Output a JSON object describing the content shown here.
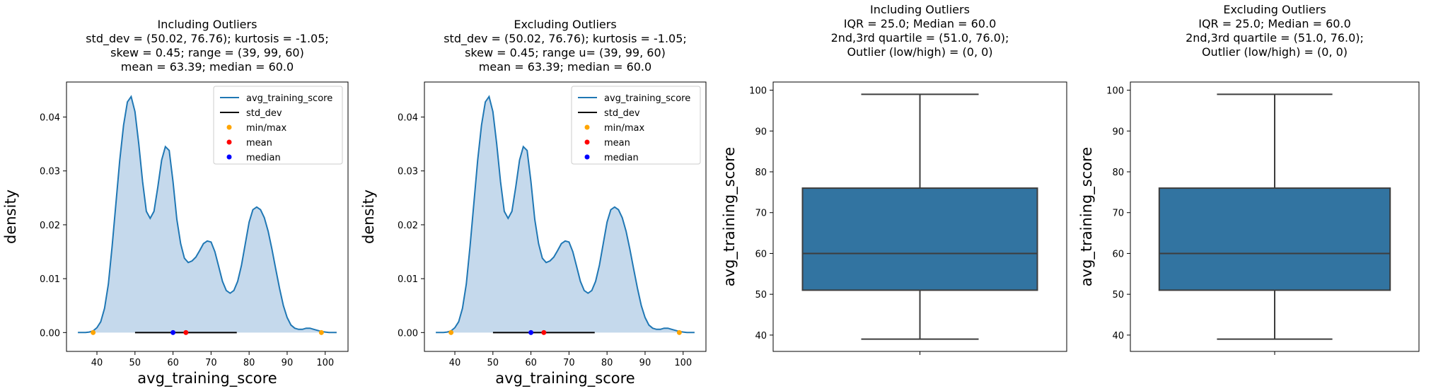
{
  "chart_data": [
    {
      "type": "area",
      "title": [
        "Including Outliers",
        "std_dev = (50.02, 76.76); kurtosis = -1.05;",
        "skew = 0.45; range = (39, 99, 60)",
        "mean = 63.39; median = 60.0"
      ],
      "xlabel": "avg_training_score",
      "ylabel": "density",
      "xlim": [
        32,
        106
      ],
      "ylim": [
        -0.0035,
        0.0465
      ],
      "xticks": [
        "40",
        "50",
        "60",
        "70",
        "80",
        "90",
        "100"
      ],
      "yticks": [
        "0.00",
        "0.01",
        "0.02",
        "0.03",
        "0.04"
      ],
      "series": [
        {
          "name": "avg_training_score",
          "x": [
            35,
            37,
            38,
            39,
            40,
            41,
            42,
            43,
            44,
            45,
            46,
            47,
            48,
            49,
            50,
            51,
            52,
            53,
            54,
            55,
            56,
            57,
            58,
            59,
            60,
            61,
            62,
            63,
            64,
            65,
            66,
            67,
            68,
            69,
            70,
            71,
            72,
            73,
            74,
            75,
            76,
            77,
            78,
            79,
            80,
            81,
            82,
            83,
            84,
            85,
            86,
            87,
            88,
            89,
            90,
            91,
            92,
            93,
            94,
            95,
            96,
            97,
            98,
            99,
            100,
            101,
            103
          ],
          "y": [
            0.0,
            0.0,
            0.0001,
            0.0003,
            0.0009,
            0.002,
            0.0045,
            0.009,
            0.016,
            0.024,
            0.032,
            0.0385,
            0.0428,
            0.0438,
            0.041,
            0.035,
            0.028,
            0.0225,
            0.0212,
            0.0225,
            0.027,
            0.032,
            0.0345,
            0.0338,
            0.028,
            0.021,
            0.0165,
            0.0138,
            0.013,
            0.0133,
            0.014,
            0.0152,
            0.0165,
            0.017,
            0.0168,
            0.015,
            0.0123,
            0.0095,
            0.0078,
            0.0073,
            0.0078,
            0.0095,
            0.0125,
            0.0165,
            0.0205,
            0.0228,
            0.0233,
            0.0228,
            0.0213,
            0.0188,
            0.0155,
            0.0118,
            0.0082,
            0.005,
            0.0028,
            0.0014,
            0.0008,
            0.0006,
            0.0006,
            0.0008,
            0.0008,
            0.0006,
            0.0004,
            0.0002,
            0.0001,
            0.0,
            0.0
          ]
        }
      ],
      "std_dev": [
        50.02,
        76.76
      ],
      "min_max": [
        39,
        99
      ],
      "mean": 63.39,
      "median": 60.0,
      "legend": [
        "avg_training_score",
        "std_dev",
        "min/max",
        "mean",
        "median"
      ],
      "legend_loc": "upper right",
      "grid": false
    },
    {
      "type": "area",
      "title": [
        "Excluding Outliers",
        "std_dev = (50.02, 76.76); kurtosis = -1.05;",
        "skew = 0.45; range u= (39, 99, 60)",
        "mean = 63.39; median = 60.0"
      ],
      "xlabel": "avg_training_score",
      "ylabel": "density",
      "xlim": [
        32,
        106
      ],
      "ylim": [
        -0.0035,
        0.0465
      ],
      "xticks": [
        "40",
        "50",
        "60",
        "70",
        "80",
        "90",
        "100"
      ],
      "yticks": [
        "0.00",
        "0.01",
        "0.02",
        "0.03",
        "0.04"
      ],
      "series": [
        {
          "name": "avg_training_score",
          "x": [
            35,
            37,
            38,
            39,
            40,
            41,
            42,
            43,
            44,
            45,
            46,
            47,
            48,
            49,
            50,
            51,
            52,
            53,
            54,
            55,
            56,
            57,
            58,
            59,
            60,
            61,
            62,
            63,
            64,
            65,
            66,
            67,
            68,
            69,
            70,
            71,
            72,
            73,
            74,
            75,
            76,
            77,
            78,
            79,
            80,
            81,
            82,
            83,
            84,
            85,
            86,
            87,
            88,
            89,
            90,
            91,
            92,
            93,
            94,
            95,
            96,
            97,
            98,
            99,
            100,
            101,
            103
          ],
          "y": [
            0.0,
            0.0,
            0.0001,
            0.0003,
            0.0009,
            0.002,
            0.0045,
            0.009,
            0.016,
            0.024,
            0.032,
            0.0385,
            0.0428,
            0.0438,
            0.041,
            0.035,
            0.028,
            0.0225,
            0.0212,
            0.0225,
            0.027,
            0.032,
            0.0345,
            0.0338,
            0.028,
            0.021,
            0.0165,
            0.0138,
            0.013,
            0.0133,
            0.014,
            0.0152,
            0.0165,
            0.017,
            0.0168,
            0.015,
            0.0123,
            0.0095,
            0.0078,
            0.0073,
            0.0078,
            0.0095,
            0.0125,
            0.0165,
            0.0205,
            0.0228,
            0.0233,
            0.0228,
            0.0213,
            0.0188,
            0.0155,
            0.0118,
            0.0082,
            0.005,
            0.0028,
            0.0014,
            0.0008,
            0.0006,
            0.0006,
            0.0008,
            0.0008,
            0.0006,
            0.0004,
            0.0002,
            0.0001,
            0.0,
            0.0
          ]
        }
      ],
      "std_dev": [
        50.02,
        76.76
      ],
      "min_max": [
        39,
        99
      ],
      "mean": 63.39,
      "median": 60.0,
      "legend": [
        "avg_training_score",
        "std_dev",
        "min/max",
        "mean",
        "median"
      ],
      "legend_loc": "upper right",
      "grid": false
    },
    {
      "type": "box",
      "title": [
        "Including Outliers",
        "IQR = 25.0; Median = 60.0",
        "2nd,3rd  quartile = (51.0, 76.0);",
        "Outlier (low/high) = (0, 0)"
      ],
      "xlabel": "",
      "ylabel": "avg_training_score",
      "ylim": [
        36,
        102
      ],
      "yticks": [
        "40",
        "50",
        "60",
        "70",
        "80",
        "90",
        "100"
      ],
      "box": {
        "whisker_low": 39,
        "q1": 51,
        "median": 60,
        "q3": 76,
        "whisker_high": 99
      },
      "grid": false
    },
    {
      "type": "box",
      "title": [
        "Excluding Outliers",
        "IQR = 25.0; Median = 60.0",
        "2nd,3rd  quartile = (51.0, 76.0);",
        "Outlier (low/high) = (0, 0)"
      ],
      "xlabel": "",
      "ylabel": "avg_training_score",
      "ylim": [
        36,
        102
      ],
      "yticks": [
        "40",
        "50",
        "60",
        "70",
        "80",
        "90",
        "100"
      ],
      "box": {
        "whisker_low": 39,
        "q1": 51,
        "median": 60,
        "q3": 76,
        "whisker_high": 99
      },
      "grid": false
    }
  ],
  "colors": {
    "line": "#1f77b4",
    "fill": "#c5d9ec",
    "std_dev": "#000000",
    "min_max": "#ffa500",
    "mean": "#ff0000",
    "median": "#0000ff",
    "box": "#3274a1",
    "box_edge": "#3d3d3d"
  }
}
